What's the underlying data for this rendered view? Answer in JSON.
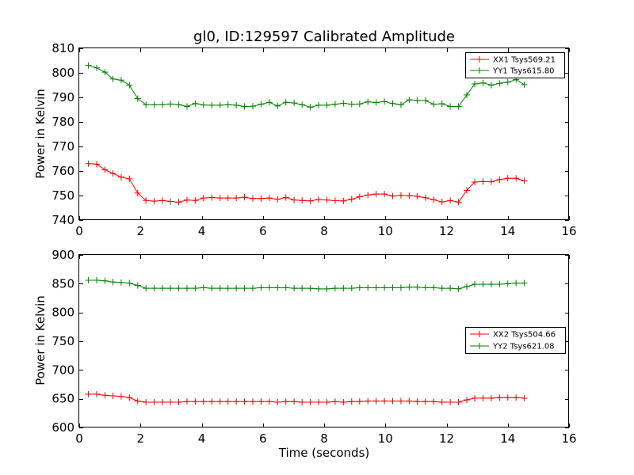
{
  "colors": {
    "xx": "#ff0000",
    "yy": "#008000"
  },
  "chart_data": [
    {
      "type": "line",
      "title": "gl0, ID:129597 Calibrated Amplitude",
      "xlabel": "",
      "ylabel": "Power in Kelvin",
      "xlim": [
        0,
        16
      ],
      "ylim": [
        740,
        810
      ],
      "xticks": [
        0,
        2,
        4,
        6,
        8,
        10,
        12,
        14,
        16
      ],
      "yticks": [
        740,
        750,
        760,
        770,
        780,
        790,
        800,
        810
      ],
      "legend_position": "top-right",
      "grid": false,
      "x": [
        0.3,
        0.57,
        0.84,
        1.1,
        1.37,
        1.64,
        1.91,
        2.18,
        2.45,
        2.72,
        2.98,
        3.25,
        3.52,
        3.79,
        4.06,
        4.33,
        4.6,
        4.86,
        5.13,
        5.4,
        5.67,
        5.94,
        6.21,
        6.48,
        6.75,
        7.02,
        7.28,
        7.55,
        7.82,
        8.09,
        8.36,
        8.63,
        8.9,
        9.16,
        9.43,
        9.7,
        9.97,
        10.24,
        10.51,
        10.78,
        11.04,
        11.31,
        11.58,
        11.85,
        12.12,
        12.39,
        12.66,
        12.92,
        13.19,
        13.46,
        13.73,
        14.0,
        14.27,
        14.54
      ],
      "series": [
        {
          "name": "XX1 Tsys569.21",
          "color_key": "xx",
          "values": [
            763.0,
            762.8,
            760.5,
            759.0,
            757.5,
            756.8,
            751.0,
            748.0,
            747.7,
            748.0,
            747.6,
            747.3,
            748.2,
            748.0,
            749.0,
            749.2,
            749.0,
            749.0,
            749.0,
            749.3,
            748.8,
            748.8,
            749.0,
            748.5,
            749.2,
            748.2,
            748.0,
            747.8,
            748.4,
            748.2,
            747.9,
            747.8,
            748.5,
            749.5,
            750.2,
            750.6,
            750.6,
            749.8,
            750.1,
            749.9,
            749.7,
            749.1,
            748.3,
            747.4,
            748.0,
            747.3,
            752.1,
            755.5,
            755.7,
            755.6,
            756.5,
            757.0,
            757.0,
            756.0
          ]
        },
        {
          "name": "YY1 Tsys615.80",
          "color_key": "yy",
          "values": [
            803.0,
            802.0,
            800.3,
            797.5,
            797.0,
            795.0,
            789.5,
            787.0,
            787.0,
            787.0,
            787.3,
            787.0,
            786.3,
            787.5,
            786.9,
            786.8,
            786.8,
            787.0,
            786.8,
            786.3,
            786.4,
            787.2,
            788.0,
            786.5,
            788.0,
            787.7,
            787.0,
            786.0,
            786.8,
            786.8,
            787.2,
            787.6,
            787.2,
            787.3,
            788.2,
            787.9,
            788.3,
            787.5,
            787.0,
            789.0,
            788.8,
            788.7,
            787.2,
            787.4,
            786.3,
            786.3,
            791.0,
            795.5,
            795.9,
            795.0,
            795.7,
            796.2,
            797.3,
            795.2
          ]
        }
      ]
    },
    {
      "type": "line",
      "title": "",
      "xlabel": "Time (seconds)",
      "ylabel": "Power in Kelvin",
      "xlim": [
        0,
        16
      ],
      "ylim": [
        600,
        900
      ],
      "xticks": [
        0,
        2,
        4,
        6,
        8,
        10,
        12,
        14,
        16
      ],
      "yticks": [
        600,
        650,
        700,
        750,
        800,
        850,
        900
      ],
      "legend_position": "center-right",
      "grid": false,
      "x": [
        0.3,
        0.57,
        0.84,
        1.1,
        1.37,
        1.64,
        1.91,
        2.18,
        2.45,
        2.72,
        2.98,
        3.25,
        3.52,
        3.79,
        4.06,
        4.33,
        4.6,
        4.86,
        5.13,
        5.4,
        5.67,
        5.94,
        6.21,
        6.48,
        6.75,
        7.02,
        7.28,
        7.55,
        7.82,
        8.09,
        8.36,
        8.63,
        8.9,
        9.16,
        9.43,
        9.7,
        9.97,
        10.24,
        10.51,
        10.78,
        11.04,
        11.31,
        11.58,
        11.85,
        12.12,
        12.39,
        12.66,
        12.92,
        13.19,
        13.46,
        13.73,
        14.0,
        14.27,
        14.54
      ],
      "series": [
        {
          "name": "XX2 Tsys504.66",
          "color_key": "xx",
          "values": [
            658,
            658,
            656,
            655,
            654,
            652,
            646,
            644,
            644,
            644,
            644,
            644,
            645,
            645,
            645,
            645,
            645,
            645,
            645,
            645,
            645,
            645,
            645,
            644,
            645,
            645,
            644,
            644,
            644,
            644,
            645,
            644,
            645,
            645,
            646,
            646,
            646,
            646,
            646,
            646,
            645,
            645,
            645,
            644,
            644,
            644,
            648,
            651,
            651,
            651,
            652,
            652,
            652,
            651
          ]
        },
        {
          "name": "YY2 Tsys621.08",
          "color_key": "yy",
          "values": [
            856,
            856,
            855,
            853,
            852,
            851,
            847,
            842,
            842,
            842,
            842,
            842,
            842,
            842,
            843,
            842,
            842,
            842,
            842,
            842,
            842,
            843,
            843,
            843,
            843,
            842,
            842,
            842,
            841,
            841,
            842,
            842,
            842,
            843,
            843,
            843,
            843,
            843,
            843,
            844,
            844,
            843,
            843,
            842,
            842,
            841,
            845,
            849,
            849,
            849,
            849,
            850,
            851,
            851
          ]
        }
      ]
    }
  ]
}
